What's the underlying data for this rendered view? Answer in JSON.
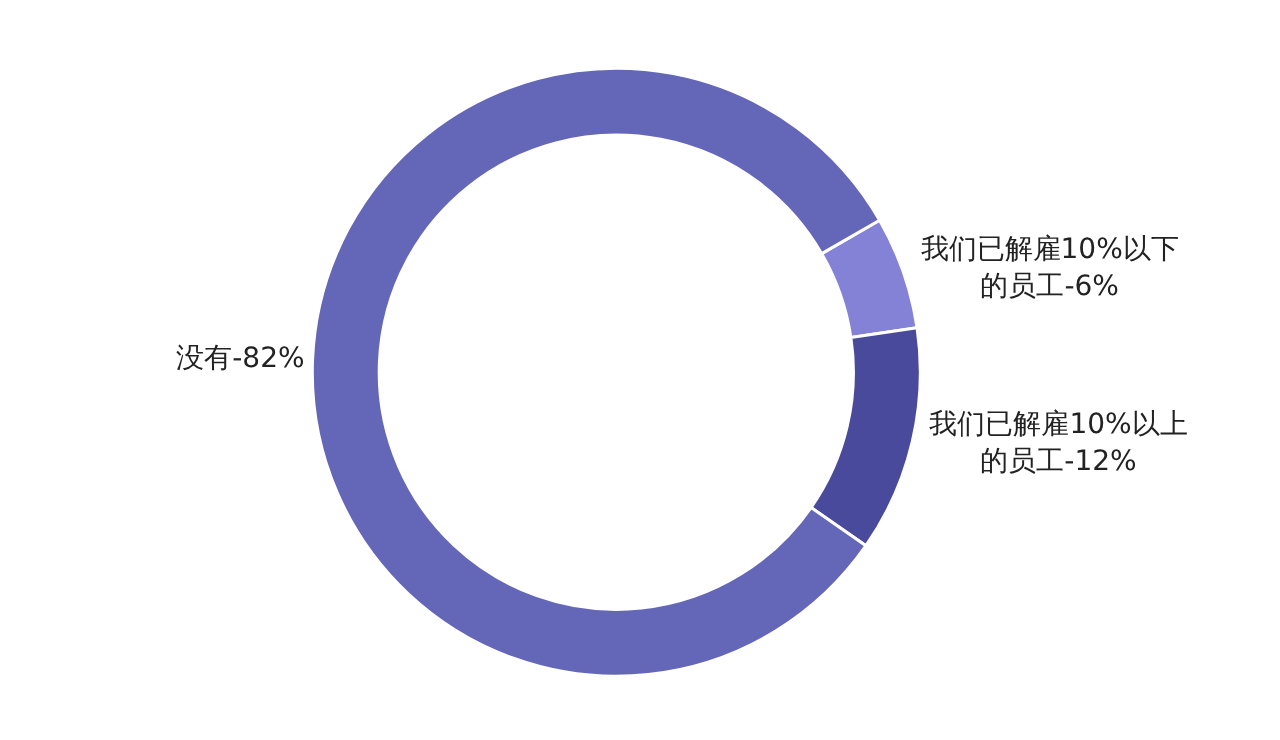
{
  "chart_data": {
    "type": "donut",
    "categories": [
      "我们已解雇10%以下的员工-",
      "我们已解雇10%以上的员工-",
      "没有-"
    ],
    "values": [
      6,
      12,
      82
    ],
    "value_labels": [
      "6%",
      "12%",
      "82%"
    ],
    "colors": [
      "#8482d6",
      "#4a4a9c",
      "#6466b8"
    ],
    "legend": false
  }
}
